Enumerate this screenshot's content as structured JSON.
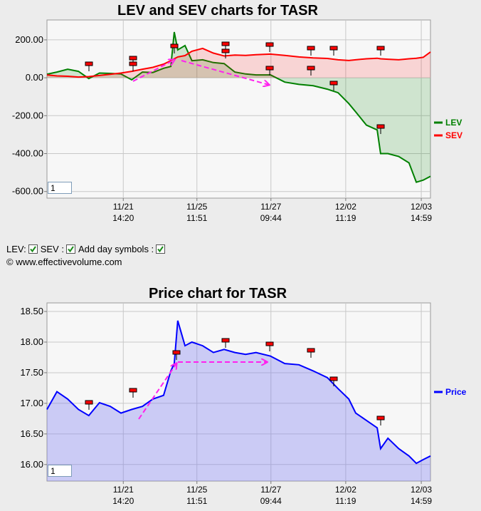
{
  "chart_data": [
    {
      "type": "area",
      "title": "LEV and SEV charts for TASR",
      "x": [
        0,
        2.6,
        5.4,
        8.2,
        10.9,
        13.7,
        16.5,
        19.3,
        22.1,
        24.9,
        27.6,
        30.4,
        32.3,
        33.2,
        34.1,
        36.0,
        37.8,
        40.6,
        43.4,
        46.2,
        49.0,
        51.8,
        54.5,
        58.3,
        62.0,
        65.7,
        69.4,
        73.1,
        75.9,
        78.7,
        80.5,
        83.3,
        86.1,
        87.0,
        88.9,
        91.7,
        94.4,
        96.3,
        98.1,
        100
      ],
      "series": [
        {
          "name": "LEV",
          "color": "#008000",
          "fill": "rgba(0,128,0,0.16)",
          "values": [
            19,
            30,
            45,
            34,
            -4,
            25,
            23,
            20,
            -11,
            30,
            28,
            50,
            60,
            241,
            147,
            170,
            90,
            95,
            80,
            75,
            30,
            20,
            15,
            15,
            -23,
            -35,
            -42,
            -60,
            -79,
            -136,
            -180,
            -250,
            -275,
            -400,
            -400,
            -415,
            -449,
            -551,
            -540,
            -520
          ]
        },
        {
          "name": "SEV",
          "color": "#ff0000",
          "fill": "rgba(255,0,0,0.14)",
          "values": [
            15,
            10,
            8,
            4,
            6,
            12,
            18,
            25,
            34,
            45,
            55,
            72,
            90,
            100,
            110,
            117,
            140,
            155,
            130,
            115,
            120,
            118,
            122,
            125,
            118,
            110,
            105,
            102,
            95,
            91,
            95,
            100,
            103,
            100,
            98,
            95,
            100,
            103,
            108,
            136
          ]
        }
      ],
      "fill_to": "zero",
      "xlim": [
        0,
        100
      ],
      "xticks": [
        {
          "value": 19.9,
          "label": "11/21 14:20"
        },
        {
          "value": 39.1,
          "label": "11/25 11:51"
        },
        {
          "value": 58.4,
          "label": "11/27 09:44"
        },
        {
          "value": 77.9,
          "label": "12/02 11:19"
        },
        {
          "value": 97.6,
          "label": "12/03 14:59"
        }
      ],
      "ylim": [
        -635,
        305
      ],
      "yticks": [
        {
          "value": 200,
          "label": "200.00"
        },
        {
          "value": 0,
          "label": "0.00"
        },
        {
          "value": -200,
          "label": "-200.00"
        },
        {
          "value": -400,
          "label": "-400.00"
        },
        {
          "value": -600,
          "label": "-600.00"
        }
      ],
      "grid": true,
      "legend": "right",
      "zoom": "1"
    },
    {
      "type": "area",
      "title": "Price chart for TASR",
      "x": [
        0,
        2.6,
        5.4,
        8.2,
        10.9,
        13.7,
        16.5,
        19.3,
        22.1,
        24.9,
        27.6,
        30.4,
        32.3,
        33.2,
        34.1,
        36.0,
        37.8,
        40.6,
        43.4,
        46.2,
        49.0,
        51.8,
        54.5,
        58.3,
        62.0,
        65.7,
        69.4,
        73.1,
        75.9,
        78.7,
        80.5,
        83.3,
        86.1,
        87.0,
        88.9,
        91.7,
        94.4,
        96.3,
        98.1,
        100
      ],
      "series": [
        {
          "name": "Price",
          "color": "#0000ff",
          "fill": "rgba(120,120,240,0.35)",
          "values": [
            16.9,
            17.19,
            17.07,
            16.9,
            16.8,
            17.01,
            16.95,
            16.84,
            16.9,
            16.95,
            17.07,
            17.13,
            17.53,
            17.65,
            18.35,
            17.94,
            18.0,
            17.94,
            17.83,
            17.88,
            17.83,
            17.8,
            17.83,
            17.77,
            17.65,
            17.63,
            17.53,
            17.42,
            17.24,
            17.07,
            16.84,
            16.72,
            16.6,
            16.26,
            16.43,
            16.26,
            16.14,
            16.02,
            16.08,
            16.14
          ]
        }
      ],
      "fill_to": "bottom",
      "xlim": [
        0,
        100
      ],
      "xticks": [
        {
          "value": 19.9,
          "label": "11/21 14:20"
        },
        {
          "value": 39.1,
          "label": "11/25 11:51"
        },
        {
          "value": 58.4,
          "label": "11/27 09:44"
        },
        {
          "value": 77.9,
          "label": "12/02 11:19"
        },
        {
          "value": 97.6,
          "label": "12/03 14:59"
        }
      ],
      "ylim": [
        15.73,
        18.64
      ],
      "yticks": [
        {
          "value": 18.5,
          "label": "18.50"
        },
        {
          "value": 18,
          "label": "18.00"
        },
        {
          "value": 17.5,
          "label": "17.50"
        },
        {
          "value": 17,
          "label": "17.00"
        },
        {
          "value": 16.5,
          "label": "16.50"
        },
        {
          "value": 16,
          "label": "16.00"
        }
      ],
      "grid": true,
      "legend": "right",
      "zoom": "1"
    }
  ],
  "controls": {
    "labels": [
      "LEV:",
      "SEV :",
      "Add day symbols :"
    ]
  },
  "copyright": "© www.effectivevolume.com"
}
